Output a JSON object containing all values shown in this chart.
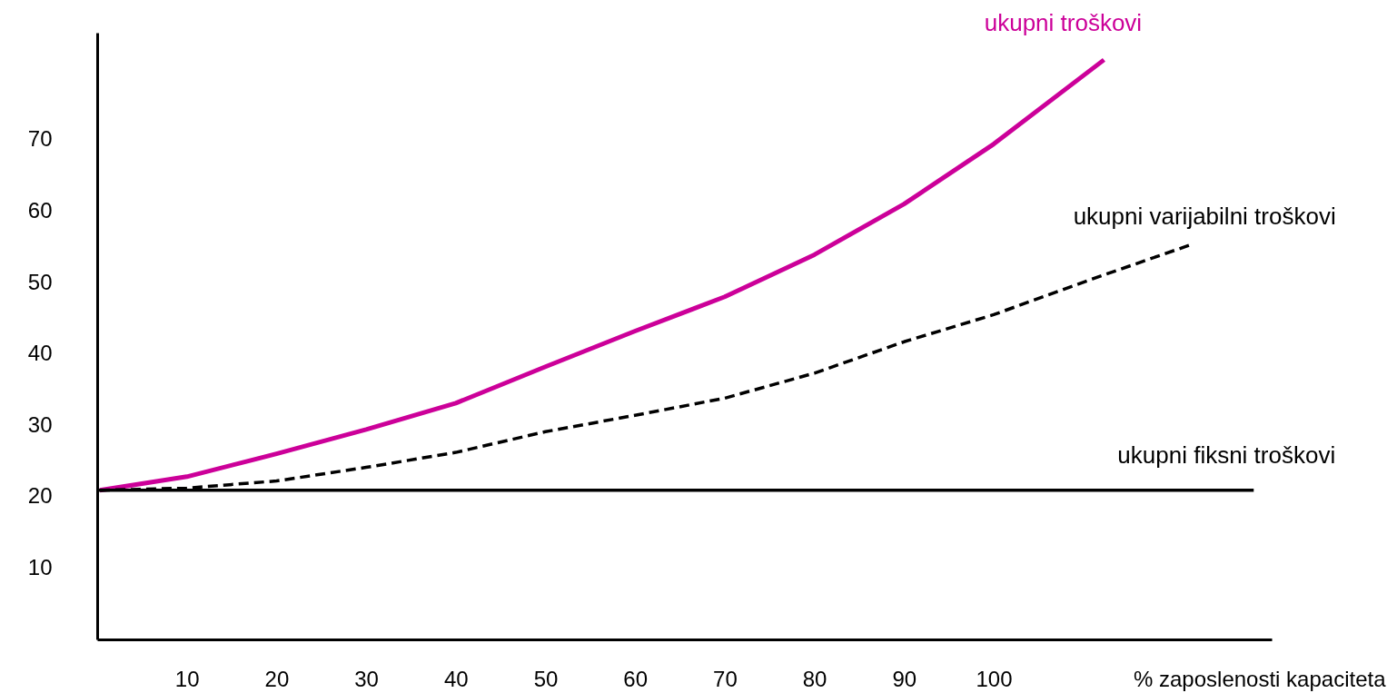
{
  "chart_data": {
    "type": "line",
    "xlabel": "% zaposlenosti kapaciteta",
    "xlim": [
      0,
      131
    ],
    "xticks": [
      10,
      20,
      30,
      40,
      50,
      60,
      70,
      80,
      90,
      100
    ],
    "ylim": [
      0,
      85
    ],
    "yticks": [
      10,
      20,
      30,
      40,
      50,
      60,
      70
    ],
    "grid": false,
    "marker": "none",
    "series": [
      {
        "name": "ukupni troškovi",
        "color": "#cc0099",
        "line_style": "solid",
        "x": [
          0.3,
          10,
          20,
          30,
          40,
          50,
          60,
          70,
          80,
          90,
          100,
          112.3
        ],
        "values": [
          20.9,
          22.8,
          26,
          29.4,
          33.1,
          38.2,
          43.2,
          48,
          53.9,
          61,
          69.4,
          81.2
        ]
      },
      {
        "name": "ukupni varijabilni troškovi",
        "color": "#000000",
        "line_style": "dashed",
        "x": [
          0.3,
          10,
          20,
          30,
          40,
          50,
          60,
          70,
          80,
          90,
          100,
          111,
          122
        ],
        "values": [
          20.9,
          21.2,
          22.2,
          24.1,
          26.2,
          29.1,
          31.4,
          33.8,
          37.3,
          41.7,
          45.5,
          50.5,
          55.3
        ]
      },
      {
        "name": "ukupni fiksni troškovi",
        "color": "#000000",
        "line_style": "solid",
        "x": [
          0,
          129
        ],
        "values": [
          20.9,
          20.9
        ]
      }
    ]
  }
}
